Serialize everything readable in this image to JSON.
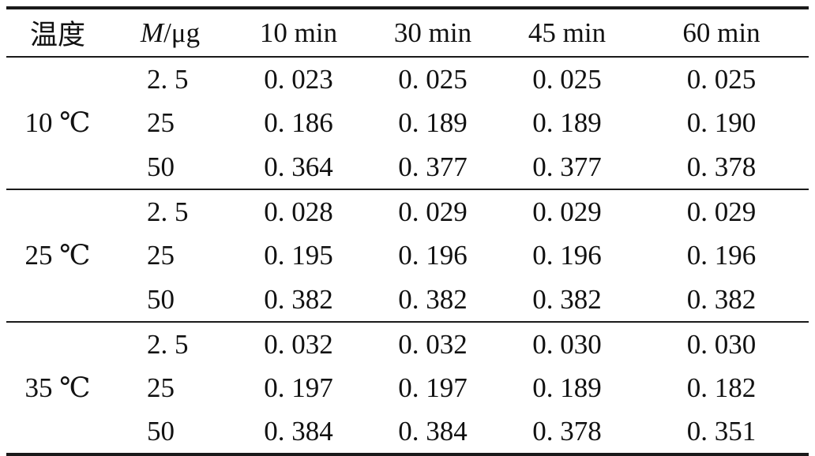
{
  "table": {
    "headers": {
      "temperature": "温度",
      "mass_symbol": "M",
      "mass_unit": "/μg",
      "t10": "10 min",
      "t30": "30 min",
      "t45": "45 min",
      "t60": "60 min"
    },
    "groups": [
      {
        "temperature": "10 ℃",
        "rows": [
          {
            "mass": "2. 5",
            "t10": "0. 023",
            "t30": "0. 025",
            "t45": "0. 025",
            "t60": "0. 025"
          },
          {
            "mass": "25",
            "t10": "0. 186",
            "t30": "0. 189",
            "t45": "0. 189",
            "t60": "0. 190"
          },
          {
            "mass": "50",
            "t10": "0. 364",
            "t30": "0. 377",
            "t45": "0. 377",
            "t60": "0. 378"
          }
        ]
      },
      {
        "temperature": "25 ℃",
        "rows": [
          {
            "mass": "2. 5",
            "t10": "0. 028",
            "t30": "0. 029",
            "t45": "0. 029",
            "t60": "0. 029"
          },
          {
            "mass": "25",
            "t10": "0. 195",
            "t30": "0. 196",
            "t45": "0. 196",
            "t60": "0. 196"
          },
          {
            "mass": "50",
            "t10": "0. 382",
            "t30": "0. 382",
            "t45": "0. 382",
            "t60": "0. 382"
          }
        ]
      },
      {
        "temperature": "35 ℃",
        "rows": [
          {
            "mass": "2. 5",
            "t10": "0. 032",
            "t30": "0. 032",
            "t45": "0. 030",
            "t60": "0. 030"
          },
          {
            "mass": "25",
            "t10": "0. 197",
            "t30": "0. 197",
            "t45": "0. 189",
            "t60": "0. 182"
          },
          {
            "mass": "50",
            "t10": "0. 384",
            "t30": "0. 384",
            "t45": "0. 378",
            "t60": "0. 351"
          }
        ]
      }
    ]
  }
}
